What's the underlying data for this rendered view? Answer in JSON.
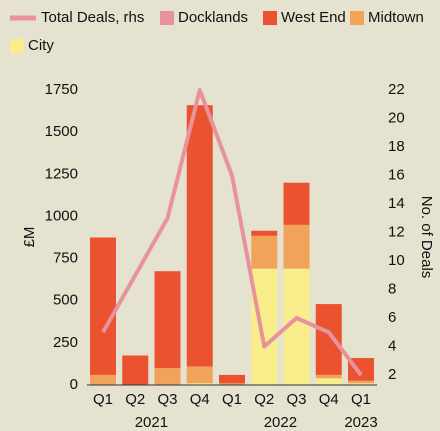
{
  "chart_data": {
    "type": "bar",
    "categories": [
      "Q1",
      "Q2",
      "Q3",
      "Q4",
      "Q1",
      "Q2",
      "Q3",
      "Q4",
      "Q1"
    ],
    "years": [
      "2021",
      "2022",
      "2023"
    ],
    "ylabel": "£M",
    "y2label": "No. of Deals",
    "ylim": [
      0,
      1750
    ],
    "yticks": [
      0,
      250,
      500,
      750,
      1000,
      1250,
      1500,
      1750
    ],
    "y2lim": [
      1.3,
      22
    ],
    "y2ticks": [
      2,
      4,
      6,
      8,
      10,
      12,
      14,
      16,
      18,
      20,
      22
    ],
    "series": [
      {
        "name": "Total Deals, rhs",
        "color": "#e8929b",
        "type": "line",
        "axis": "y2",
        "values": [
          5,
          9,
          13,
          22,
          16,
          4,
          6,
          5,
          2
        ]
      },
      {
        "name": "Docklands",
        "color": "#e8929b",
        "values": [
          0,
          0,
          0,
          0,
          0,
          0,
          0,
          0,
          0
        ]
      },
      {
        "name": "West End",
        "color": "#ea5230",
        "values": [
          815,
          175,
          575,
          1550,
          50,
          30,
          250,
          420,
          135
        ]
      },
      {
        "name": "Midtown",
        "color": "#f2a35a",
        "values": [
          60,
          0,
          100,
          100,
          10,
          195,
          260,
          20,
          15
        ]
      },
      {
        "name": "City",
        "color": "#faee8c",
        "values": [
          0,
          0,
          0,
          10,
          0,
          690,
          690,
          40,
          10
        ]
      }
    ]
  }
}
